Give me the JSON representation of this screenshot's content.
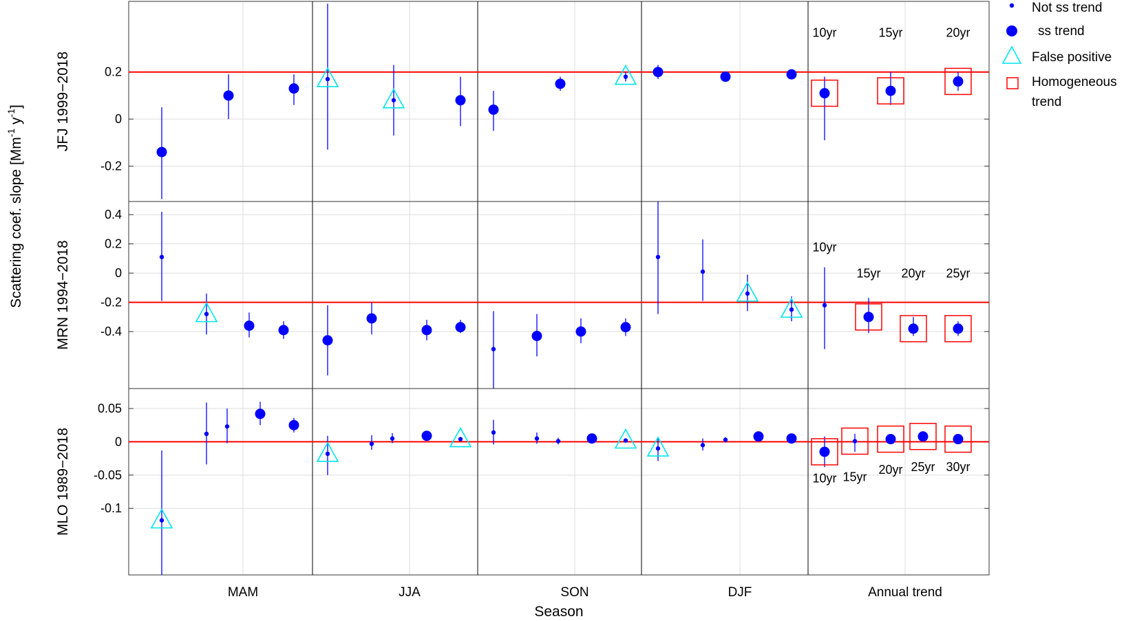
{
  "chart_data": {
    "type": "scatter",
    "xlabel": "Season",
    "ylabel_main": "Scattering coef. slope [Mm",
    "ylabel_sup1": "-1",
    "ylabel_mid": "y",
    "ylabel_sup2": "-1",
    "ylabel_end": "]",
    "seasons": [
      "MAM",
      "JJA",
      "SON",
      "DJF",
      "Annual trend"
    ],
    "legend": {
      "position": "right",
      "not_ss": "Not ss trend",
      "ss": "ss trend",
      "false_positive": "False positive",
      "homogeneous_1": "Homogeneous",
      "homogeneous_2": "trend"
    },
    "colors": {
      "marker": "#0000ff",
      "refline": "#ff0000",
      "triangle": "#00e5ee",
      "box": "#ff0000",
      "grid": "#dddddd"
    },
    "panels": [
      {
        "ylabel": "JFJ 1999−2018",
        "ylim": [
          -0.35,
          0.5
        ],
        "ticks": [
          0.2,
          0,
          -0.2
        ],
        "tick_labels": [
          "0.2",
          "0",
          "-0.2"
        ],
        "refline": 0.2,
        "grid": true,
        "points": [
          {
            "x": 1,
            "y": -0.14,
            "lo": -0.34,
            "hi": 0.05,
            "ss": true
          },
          {
            "x": 3,
            "y": 0.1,
            "lo": 0.0,
            "hi": 0.19,
            "ss": true
          },
          {
            "x": 5,
            "y": 0.13,
            "lo": 0.06,
            "hi": 0.19,
            "ss": true
          },
          {
            "x": 6,
            "y": 0.17,
            "lo": -0.13,
            "hi": 0.49,
            "ss": false,
            "fp": true
          },
          {
            "x": 8,
            "y": 0.08,
            "lo": -0.07,
            "hi": 0.23,
            "ss": false,
            "fp": true
          },
          {
            "x": 10,
            "y": 0.08,
            "lo": -0.03,
            "hi": 0.18,
            "ss": true
          },
          {
            "x": 11,
            "y": 0.04,
            "lo": -0.05,
            "hi": 0.12,
            "ss": true
          },
          {
            "x": 13,
            "y": 0.15,
            "lo": 0.12,
            "hi": 0.18,
            "ss": true
          },
          {
            "x": 15,
            "y": 0.18,
            "lo": 0.16,
            "hi": 0.2,
            "ss": false,
            "fp": true
          },
          {
            "x": 16,
            "y": 0.2,
            "lo": 0.17,
            "hi": 0.23,
            "ss": true
          },
          {
            "x": 18,
            "y": 0.18,
            "lo": 0.17,
            "hi": 0.19,
            "ss": true
          },
          {
            "x": 20,
            "y": 0.19,
            "lo": 0.18,
            "hi": 0.2,
            "ss": true
          },
          {
            "x": 21,
            "y": 0.11,
            "lo": -0.09,
            "hi": 0.18,
            "ss": true,
            "box": true
          },
          {
            "x": 23,
            "y": 0.12,
            "lo": 0.06,
            "hi": 0.2,
            "ss": true,
            "box": true
          },
          {
            "x": 25,
            "y": 0.16,
            "lo": 0.12,
            "hi": 0.2,
            "ss": true,
            "box": true
          }
        ],
        "annotations": [
          {
            "x": 21,
            "y": 0.35,
            "label": "10yr"
          },
          {
            "x": 23,
            "y": 0.35,
            "label": "15yr"
          },
          {
            "x": 25,
            "y": 0.35,
            "label": "20yr"
          }
        ]
      },
      {
        "ylabel": "MRN 1994−2018",
        "ylim": [
          -0.79,
          0.49
        ],
        "ticks": [
          0.4,
          0.2,
          0,
          -0.2,
          -0.4
        ],
        "tick_labels": [
          "0.4",
          "0.2",
          "0",
          "-0.2",
          "-0.4"
        ],
        "refline": -0.2,
        "grid": true,
        "points": [
          {
            "x": 1,
            "y": 0.11,
            "lo": -0.19,
            "hi": 0.42,
            "ss": false
          },
          {
            "x": 2,
            "y": -0.28,
            "lo": -0.42,
            "hi": -0.14,
            "ss": false,
            "fp": true
          },
          {
            "x": 3,
            "y": -0.36,
            "lo": -0.44,
            "hi": -0.27,
            "ss": true
          },
          {
            "x": 4,
            "y": -0.39,
            "lo": -0.45,
            "hi": -0.33,
            "ss": true
          },
          {
            "x": 5,
            "y": -0.46,
            "lo": -0.7,
            "hi": -0.22,
            "ss": true
          },
          {
            "x": 6,
            "y": -0.31,
            "lo": -0.42,
            "hi": -0.2,
            "ss": true
          },
          {
            "x": 7,
            "y": -0.39,
            "lo": -0.46,
            "hi": -0.32,
            "ss": true
          },
          {
            "x": 8,
            "y": -0.37,
            "lo": -0.41,
            "hi": -0.32,
            "ss": true
          },
          {
            "x": 9,
            "y": -0.52,
            "lo": -0.79,
            "hi": -0.26,
            "ss": false
          },
          {
            "x": 10,
            "y": -0.43,
            "lo": -0.57,
            "hi": -0.28,
            "ss": true
          },
          {
            "x": 11,
            "y": -0.4,
            "lo": -0.48,
            "hi": -0.31,
            "ss": true
          },
          {
            "x": 12,
            "y": -0.37,
            "lo": -0.43,
            "hi": -0.31,
            "ss": true
          },
          {
            "x": 13,
            "y": 0.11,
            "lo": -0.28,
            "hi": 0.49,
            "ss": false
          },
          {
            "x": 14,
            "y": 0.01,
            "lo": -0.19,
            "hi": 0.23,
            "ss": false
          },
          {
            "x": 15,
            "y": -0.14,
            "lo": -0.26,
            "hi": -0.01,
            "ss": false,
            "fp": true
          },
          {
            "x": 16,
            "y": -0.25,
            "lo": -0.33,
            "hi": -0.16,
            "ss": false,
            "fp": true
          },
          {
            "x": 17,
            "y": -0.22,
            "lo": -0.52,
            "hi": 0.04,
            "ss": false
          },
          {
            "x": 18,
            "y": -0.3,
            "lo": -0.41,
            "hi": -0.17,
            "ss": true,
            "box": true
          },
          {
            "x": 19,
            "y": -0.38,
            "lo": -0.43,
            "hi": -0.3,
            "ss": true,
            "box": true
          },
          {
            "x": 20,
            "y": -0.38,
            "lo": -0.43,
            "hi": -0.33,
            "ss": true,
            "box": true
          }
        ],
        "annotations": [
          {
            "x": 17,
            "y": 0.15,
            "label": "10yr"
          },
          {
            "x": 18,
            "y": -0.03,
            "label": "15yr"
          },
          {
            "x": 19,
            "y": -0.03,
            "label": "20yr"
          },
          {
            "x": 20,
            "y": -0.03,
            "label": "25yr"
          }
        ]
      },
      {
        "ylabel": "MLO 1989−2018",
        "ylim": [
          -0.2,
          0.08
        ],
        "ticks": [
          0.05,
          0,
          -0.05,
          -0.1
        ],
        "tick_labels": [
          "0.05",
          "0",
          "-0.05",
          "-0.1"
        ],
        "refline": 0,
        "grid": true,
        "points": [
          {
            "x": 1,
            "y": -0.118,
            "lo": -0.2,
            "hi": -0.013,
            "ss": false,
            "fp": true
          },
          {
            "x": 2,
            "y": 0.012,
            "lo": -0.034,
            "hi": 0.059,
            "ss": false
          },
          {
            "x": 3,
            "y": 0.023,
            "lo": -0.002,
            "hi": 0.05,
            "ss": false
          },
          {
            "x": 4,
            "y": 0.042,
            "lo": 0.025,
            "hi": 0.06,
            "ss": true
          },
          {
            "x": 5,
            "y": 0.025,
            "lo": 0.014,
            "hi": 0.036,
            "ss": true
          },
          {
            "x": 6,
            "y": -0.018,
            "lo": -0.05,
            "hi": 0.009,
            "ss": false,
            "fp": true
          },
          {
            "x": 7,
            "y": -0.003,
            "lo": -0.012,
            "hi": 0.01,
            "ss": false
          },
          {
            "x": 8,
            "y": 0.005,
            "lo": -0.002,
            "hi": 0.013,
            "ss": false
          },
          {
            "x": 9,
            "y": 0.009,
            "lo": 0.005,
            "hi": 0.013,
            "ss": true
          },
          {
            "x": 10,
            "y": 0.004,
            "lo": 0.001,
            "hi": 0.007,
            "ss": false,
            "fp": true
          },
          {
            "x": 11,
            "y": 0.014,
            "lo": -0.004,
            "hi": 0.033,
            "ss": false
          },
          {
            "x": 12,
            "y": 0.005,
            "lo": -0.003,
            "hi": 0.014,
            "ss": false
          },
          {
            "x": 13,
            "y": 0.001,
            "lo": -0.004,
            "hi": 0.006,
            "ss": false
          },
          {
            "x": 14,
            "y": 0.005,
            "lo": 0.002,
            "hi": 0.009,
            "ss": true
          },
          {
            "x": 15,
            "y": 0.002,
            "lo": 0.0,
            "hi": 0.004,
            "ss": false,
            "fp": true
          },
          {
            "x": 16,
            "y": -0.01,
            "lo": -0.029,
            "hi": 0.007,
            "ss": false,
            "fp": true
          },
          {
            "x": 17,
            "y": -0.005,
            "lo": -0.013,
            "hi": 0.005,
            "ss": false
          },
          {
            "x": 18,
            "y": 0.003,
            "lo": -0.001,
            "hi": 0.007,
            "ss": false
          },
          {
            "x": 19,
            "y": 0.008,
            "lo": 0.004,
            "hi": 0.012,
            "ss": true
          },
          {
            "x": 20,
            "y": 0.005,
            "lo": 0.002,
            "hi": 0.008,
            "ss": true
          },
          {
            "x": 21,
            "y": -0.015,
            "lo": -0.038,
            "hi": 0.008,
            "ss": true,
            "box": true
          },
          {
            "x": 22,
            "y": 0.001,
            "lo": -0.015,
            "hi": 0.012,
            "ss": false,
            "box": true
          },
          {
            "x": 23,
            "y": 0.004,
            "lo": -0.003,
            "hi": 0.01,
            "ss": true,
            "box": true
          },
          {
            "x": 24,
            "y": 0.008,
            "lo": 0.004,
            "hi": 0.012,
            "ss": true,
            "box": true
          },
          {
            "x": 25,
            "y": 0.004,
            "lo": 0.0,
            "hi": 0.008,
            "ss": true,
            "box": true
          }
        ],
        "annotations": [
          {
            "x": 21,
            "y": -0.061,
            "label": "10yr"
          },
          {
            "x": 22,
            "y": -0.059,
            "label": "15yr"
          },
          {
            "x": 23,
            "y": -0.048,
            "label": "20yr"
          },
          {
            "x": 24,
            "y": -0.044,
            "label": "25yr"
          },
          {
            "x": 25,
            "y": -0.044,
            "label": "30yr"
          }
        ]
      }
    ]
  }
}
